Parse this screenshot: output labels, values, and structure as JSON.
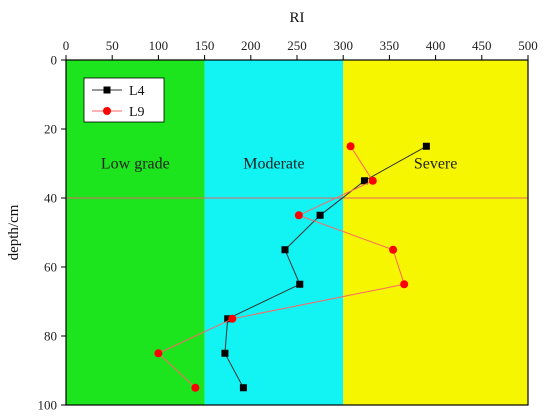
{
  "chart_data": {
    "type": "line",
    "x_axis": {
      "label": "RI",
      "position": "top",
      "range": [
        0,
        500
      ],
      "ticks": [
        0,
        50,
        100,
        150,
        200,
        250,
        300,
        350,
        400,
        450,
        500
      ]
    },
    "y_axis": {
      "label": "depth/cm",
      "inverted": true,
      "range": [
        0,
        100
      ],
      "ticks": [
        0,
        20,
        40,
        60,
        80,
        100
      ]
    },
    "zones": [
      {
        "label": "Low grade",
        "range": [
          0,
          150
        ],
        "color": "#1de51d"
      },
      {
        "label": "Moderate",
        "range": [
          150,
          300
        ],
        "color": "#12f3f3"
      },
      {
        "label": "Severe",
        "range": [
          300,
          500
        ],
        "color": "#f6f600"
      }
    ],
    "reference_line": {
      "depth": 40,
      "color": "#e06a6a"
    },
    "legend": {
      "position": "top-left"
    },
    "series": [
      {
        "name": "L4",
        "marker": "square",
        "color": "#000000",
        "line_color": "#333333",
        "points": [
          {
            "x": 390,
            "y": 25
          },
          {
            "x": 323,
            "y": 35
          },
          {
            "x": 275,
            "y": 45
          },
          {
            "x": 237,
            "y": 55
          },
          {
            "x": 253,
            "y": 65
          },
          {
            "x": 175,
            "y": 75
          },
          {
            "x": 172,
            "y": 85
          },
          {
            "x": 192,
            "y": 95
          }
        ]
      },
      {
        "name": "L9",
        "marker": "circle",
        "color": "#ff0000",
        "line_color": "#ff6666",
        "points": [
          {
            "x": 308,
            "y": 25
          },
          {
            "x": 332,
            "y": 35
          },
          {
            "x": 252,
            "y": 45
          },
          {
            "x": 354,
            "y": 55
          },
          {
            "x": 366,
            "y": 65
          },
          {
            "x": 180,
            "y": 75
          },
          {
            "x": 100,
            "y": 85
          },
          {
            "x": 140,
            "y": 95
          }
        ]
      }
    ]
  }
}
